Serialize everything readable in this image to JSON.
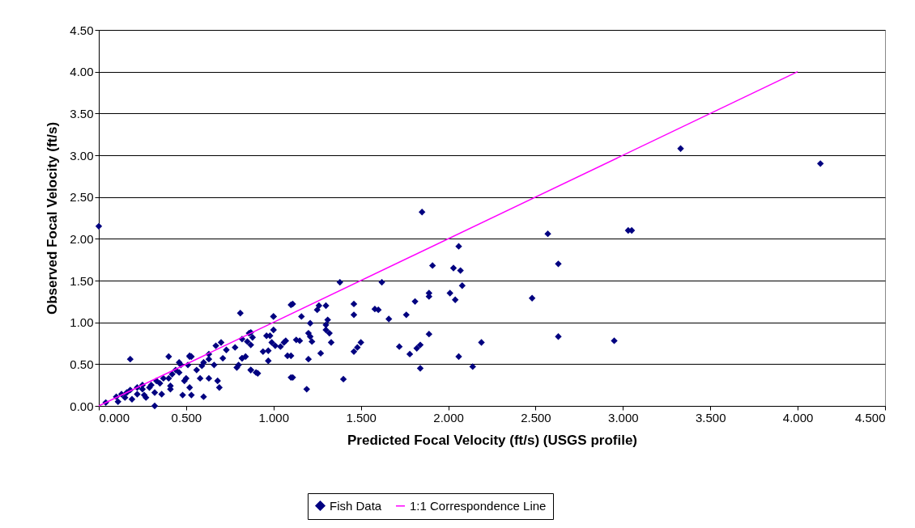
{
  "chart_data": {
    "type": "scatter",
    "xlabel": "Predicted Focal Velocity (ft/s) (USGS profile)",
    "ylabel": "Observed Focal Velocity (ft/s)",
    "xlim": [
      0,
      4.5
    ],
    "ylim": [
      0,
      4.5
    ],
    "xticks": [
      {
        "value": 0,
        "label": "0.000"
      },
      {
        "value": 0.5,
        "label": "0.500"
      },
      {
        "value": 1,
        "label": "1.000"
      },
      {
        "value": 1.5,
        "label": "1.500"
      },
      {
        "value": 2,
        "label": "2.000"
      },
      {
        "value": 2.5,
        "label": "2.500"
      },
      {
        "value": 3,
        "label": "3.000"
      },
      {
        "value": 3.5,
        "label": "3.500"
      },
      {
        "value": 4,
        "label": "4.000"
      },
      {
        "value": 4.5,
        "label": "4.500"
      }
    ],
    "yticks": [
      {
        "value": 0,
        "label": "0.00"
      },
      {
        "value": 0.5,
        "label": "0.50"
      },
      {
        "value": 1,
        "label": "1.00"
      },
      {
        "value": 1.5,
        "label": "1.50"
      },
      {
        "value": 2,
        "label": "2.00"
      },
      {
        "value": 2.5,
        "label": "2.50"
      },
      {
        "value": 3,
        "label": "3.00"
      },
      {
        "value": 3.5,
        "label": "3.50"
      },
      {
        "value": 4,
        "label": "4.00"
      },
      {
        "value": 4.5,
        "label": "4.50"
      }
    ],
    "grid": "y",
    "legend": "bottom",
    "series": [
      {
        "name": "Fish Data",
        "type": "scatter",
        "marker": "diamond",
        "color": "#000080",
        "x": [
          0,
          1.85,
          3.33,
          4.13,
          3.03,
          3.05,
          2.57,
          2.63,
          2.48,
          2.63,
          2.95,
          2.06,
          2.03,
          2.07,
          2.08,
          2.01,
          2.04,
          1.91,
          1.89,
          1.89,
          1.81,
          1.76,
          1.89,
          1.84,
          1.82,
          1.78,
          1.72,
          1.84,
          2.06,
          2.14,
          2.19,
          1.66,
          1.62,
          1.58,
          1.6,
          1.5,
          1.48,
          1.46,
          1.46,
          1.46,
          1.38,
          1.4,
          1.33,
          1.3,
          1.31,
          1.3,
          1.32,
          1.26,
          1.3,
          1.25,
          1.21,
          1.2,
          1.22,
          1.21,
          1.27,
          1.2,
          1.11,
          1.1,
          1.11,
          1.19,
          1.16,
          1.15,
          1.07,
          1.04,
          1,
          0.98,
          0.99,
          0.97,
          0.91,
          0.87,
          0.81,
          0.87,
          0.88,
          0.85,
          0.82,
          0.79,
          0.18,
          0.4,
          0.52,
          0.04,
          0.1,
          0.11,
          0.15,
          0.16,
          0.19,
          0.18,
          0.22,
          0.25,
          0.26,
          0.27,
          0.29,
          0.3,
          0.32,
          0.32,
          0.35,
          0.36,
          0.4,
          0.41,
          0.42,
          0.44,
          0.46,
          0.47,
          0.48,
          0.49,
          0.5,
          0.52,
          0.53,
          0.53,
          0.56,
          0.58,
          0.6,
          0.6,
          0.63,
          0.63,
          0.66,
          0.67,
          0.69,
          0.68,
          0.7,
          0.71,
          0.73,
          0.78,
          0.8,
          0.82,
          0.82,
          0.84,
          0.86,
          0.87,
          0.87,
          0.9,
          0.94,
          0.96,
          0.97,
          1,
          1,
          1.01,
          1.06,
          1.08,
          1.1,
          1.1,
          1.13,
          0.33,
          0.37,
          0.25,
          0.22,
          0.13,
          0.46,
          0.51,
          0.59,
          0.63,
          0.41,
          0.52
        ],
        "values": [
          2.15,
          2.32,
          3.08,
          2.9,
          2.1,
          2.1,
          2.06,
          1.7,
          1.29,
          0.83,
          0.78,
          1.91,
          1.65,
          1.62,
          1.44,
          1.35,
          1.27,
          1.68,
          1.35,
          1.31,
          1.25,
          1.09,
          0.86,
          0.73,
          0.69,
          0.62,
          0.71,
          0.45,
          0.59,
          0.47,
          0.76,
          1.04,
          1.48,
          1.16,
          1.15,
          0.76,
          0.7,
          0.65,
          1.22,
          1.09,
          1.48,
          0.32,
          0.76,
          0.91,
          1.03,
          0.97,
          0.87,
          1.2,
          1.2,
          1.15,
          0.99,
          0.87,
          0.77,
          0.83,
          0.63,
          0.56,
          1.22,
          0.6,
          0.34,
          0.2,
          1.07,
          0.78,
          0.78,
          0.71,
          1.07,
          0.84,
          0.76,
          0.66,
          0.39,
          0.43,
          1.11,
          0.88,
          0.82,
          0.77,
          0.57,
          0.46,
          0.56,
          0.59,
          0.6,
          0.04,
          0.11,
          0.05,
          0.1,
          0.16,
          0.08,
          0.19,
          0.22,
          0.25,
          0.13,
          0.1,
          0.22,
          0.25,
          0,
          0.16,
          0.27,
          0.14,
          0.33,
          0.24,
          0.38,
          0.43,
          0.52,
          0.49,
          0.13,
          0.3,
          0.33,
          0.22,
          0.59,
          0.13,
          0.43,
          0.33,
          0.11,
          0.52,
          0.33,
          0.62,
          0.49,
          0.72,
          0.22,
          0.3,
          0.76,
          0.57,
          0.67,
          0.7,
          0.49,
          0.8,
          0.57,
          0.59,
          0.87,
          0.73,
          0.43,
          0.4,
          0.65,
          0.84,
          0.54,
          1.07,
          0.91,
          0.72,
          0.76,
          0.6,
          1.21,
          0.34,
          0.79,
          0.3,
          0.33,
          0.2,
          0.14,
          0.14,
          0.4,
          0.49,
          0.48,
          0.56,
          0.2,
          0.59
        ]
      },
      {
        "name": "1:1 Correspondence Line",
        "type": "line",
        "marker": "none",
        "color": "#ff00ff",
        "x": [
          0,
          4
        ],
        "values": [
          0,
          4
        ]
      }
    ]
  }
}
